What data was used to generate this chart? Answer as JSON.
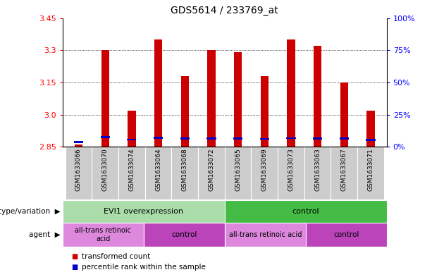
{
  "title": "GDS5614 / 233769_at",
  "samples": [
    "GSM1633066",
    "GSM1633070",
    "GSM1633074",
    "GSM1633064",
    "GSM1633068",
    "GSM1633072",
    "GSM1633065",
    "GSM1633069",
    "GSM1633073",
    "GSM1633063",
    "GSM1633067",
    "GSM1633071"
  ],
  "transformed_count": [
    2.86,
    3.3,
    3.02,
    3.35,
    3.18,
    3.3,
    3.29,
    3.18,
    3.35,
    3.32,
    3.15,
    3.02
  ],
  "percentile_val": [
    2.872,
    2.895,
    2.883,
    2.892,
    2.888,
    2.889,
    2.888,
    2.887,
    2.891,
    2.889,
    2.888,
    2.882
  ],
  "bar_base": 2.85,
  "ylim_left": [
    2.85,
    3.45
  ],
  "ylim_right": [
    0,
    100
  ],
  "yticks_left": [
    2.85,
    3.0,
    3.15,
    3.3,
    3.45
  ],
  "yticks_right": [
    0,
    25,
    50,
    75,
    100
  ],
  "gridlines": [
    3.0,
    3.15,
    3.3
  ],
  "red_color": "#cc0000",
  "blue_color": "#0000cc",
  "genotype_groups": [
    {
      "label": "EVI1 overexpression",
      "start": 0,
      "end": 6,
      "color": "#aaddaa"
    },
    {
      "label": "control",
      "start": 6,
      "end": 12,
      "color": "#44bb44"
    }
  ],
  "agent_groups": [
    {
      "label": "all-trans retinoic\nacid",
      "start": 0,
      "end": 3,
      "color": "#dd88dd"
    },
    {
      "label": "control",
      "start": 3,
      "end": 6,
      "color": "#bb44bb"
    },
    {
      "label": "all-trans retinoic acid",
      "start": 6,
      "end": 9,
      "color": "#dd88dd"
    },
    {
      "label": "control",
      "start": 9,
      "end": 12,
      "color": "#bb44bb"
    }
  ],
  "legend_red": "transformed count",
  "legend_blue": "percentile rank within the sample",
  "bar_width": 0.3,
  "blue_bar_height": 0.008,
  "blue_bar_width": 0.35,
  "bg_color": "#cccccc",
  "plot_bg": "#ffffff"
}
